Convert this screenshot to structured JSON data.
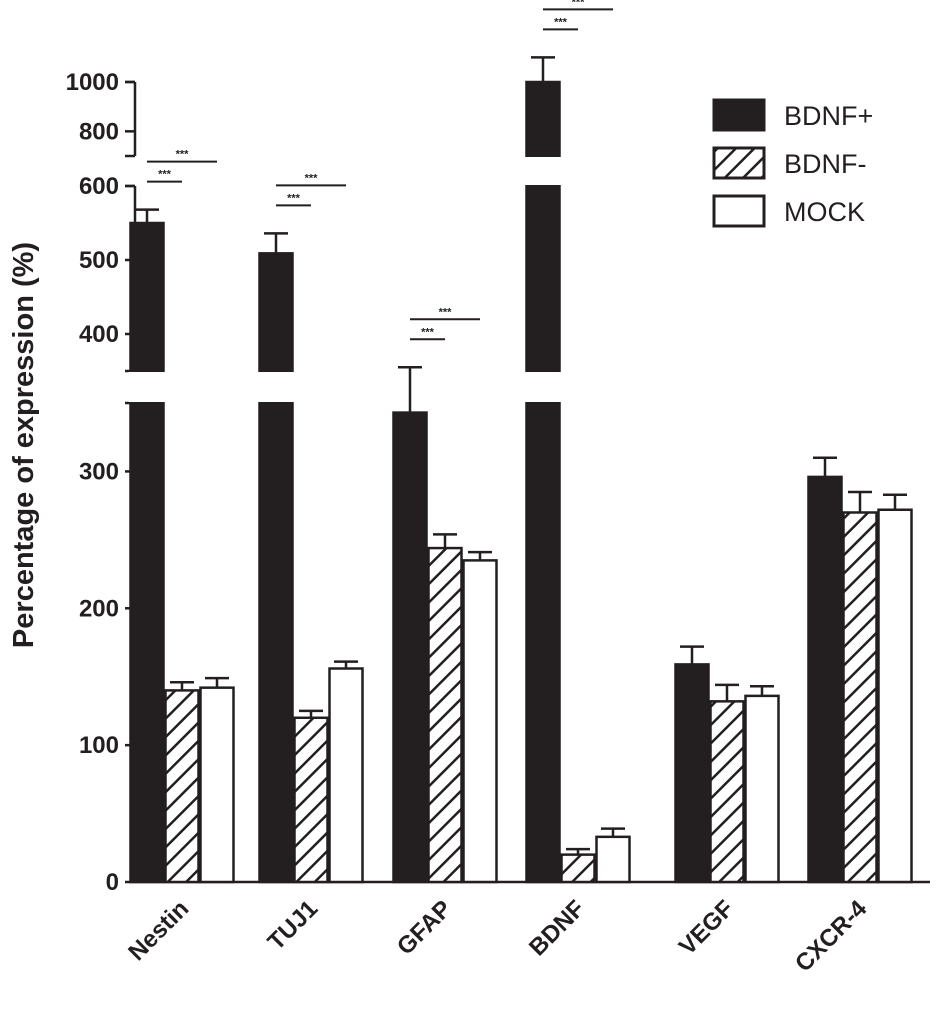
{
  "chart_data": {
    "type": "bar",
    "ylabel": "Percentage of expression (%)",
    "categories": [
      "Nestin",
      "TUJ1",
      "GFAP",
      "BDNF",
      "VEGF",
      "CXCR-4"
    ],
    "series": [
      {
        "name": "BDNF+",
        "values": [
          550,
          509,
          343,
          1000,
          159,
          296
        ],
        "errors": [
          18,
          27,
          12,
          100,
          13,
          14
        ]
      },
      {
        "name": "BDNF-",
        "values": [
          140,
          120,
          244,
          20,
          132,
          270
        ],
        "errors": [
          6,
          5,
          10,
          4,
          12,
          15
        ]
      },
      {
        "name": "MOCK",
        "values": [
          142,
          156,
          235,
          33,
          136,
          272
        ],
        "errors": [
          7,
          5,
          6,
          6,
          7,
          11
        ]
      }
    ],
    "axis": {
      "scale": "broken",
      "segments": [
        {
          "range": [
            0,
            350
          ],
          "ticks": [
            0,
            100,
            200,
            300
          ]
        },
        {
          "range": [
            350,
            600
          ],
          "ticks": [
            400,
            500,
            600
          ]
        },
        {
          "range": [
            700,
            1000
          ],
          "ticks": [
            800,
            1000
          ]
        }
      ]
    },
    "significance": [
      {
        "category": "Nestin",
        "comparisons": [
          {
            "pair": [
              "BDNF+",
              "BDNF-"
            ],
            "label": "***"
          },
          {
            "pair": [
              "BDNF+",
              "MOCK"
            ],
            "label": "***"
          }
        ]
      },
      {
        "category": "TUJ1",
        "comparisons": [
          {
            "pair": [
              "BDNF+",
              "BDNF-"
            ],
            "label": "***"
          },
          {
            "pair": [
              "BDNF+",
              "MOCK"
            ],
            "label": "***"
          }
        ]
      },
      {
        "category": "GFAP",
        "comparisons": [
          {
            "pair": [
              "BDNF+",
              "BDNF-"
            ],
            "label": "***"
          },
          {
            "pair": [
              "BDNF+",
              "MOCK"
            ],
            "label": "***"
          }
        ]
      },
      {
        "category": "BDNF",
        "comparisons": [
          {
            "pair": [
              "BDNF+",
              "BDNF-"
            ],
            "label": "***"
          },
          {
            "pair": [
              "BDNF+",
              "MOCK"
            ],
            "label": "***"
          }
        ]
      }
    ],
    "legend": {
      "position": "top-right"
    },
    "colors": {
      "BDNF+": "#231f20",
      "BDNF-": "hatched",
      "MOCK": "#ffffff"
    },
    "grid": false
  }
}
